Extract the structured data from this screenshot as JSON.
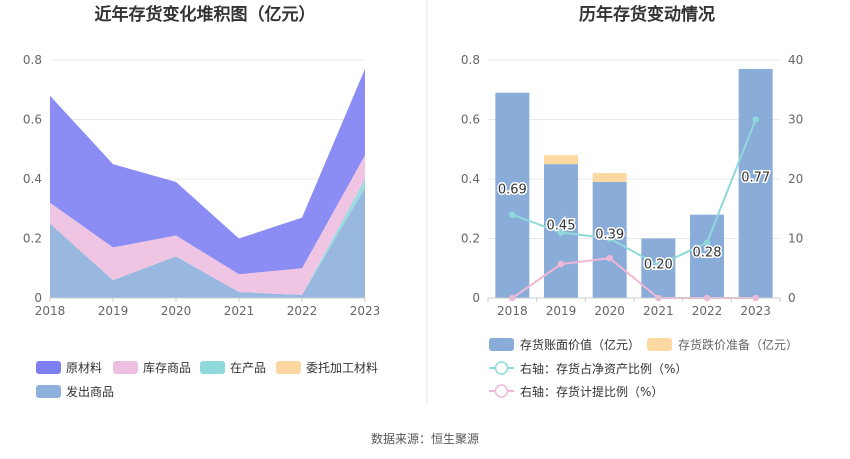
{
  "source": "数据来源：恒生聚源",
  "chart_data": [
    {
      "type": "area",
      "stacked": true,
      "title": "近年存货变化堆积图（亿元）",
      "categories": [
        "2018",
        "2019",
        "2020",
        "2021",
        "2022",
        "2023"
      ],
      "ylim": [
        0,
        0.8
      ],
      "yticks": [
        "0",
        "0.2",
        "0.4",
        "0.6",
        "0.8"
      ],
      "grid": true,
      "legend_position": "bottom",
      "series": [
        {
          "name": "原材料",
          "color": "#7e7ff3",
          "values": [
            0.36,
            0.28,
            0.18,
            0.12,
            0.17,
            0.29
          ]
        },
        {
          "name": "库存商品",
          "color": "#edbfe0",
          "values": [
            0.07,
            0.11,
            0.07,
            0.06,
            0.09,
            0.08
          ]
        },
        {
          "name": "在产品",
          "color": "#8fd8db",
          "values": [
            0.0,
            0.0,
            0.0,
            0.0,
            0.0,
            0.03
          ]
        },
        {
          "name": "委托加工材料",
          "color": "#fcd7a1",
          "values": [
            0.0,
            0.0,
            0.0,
            0.0,
            0.0,
            0.0
          ]
        },
        {
          "name": "发出商品",
          "color": "#8eb0dc",
          "values": [
            0.25,
            0.06,
            0.14,
            0.02,
            0.01,
            0.37
          ]
        }
      ]
    },
    {
      "type": "bar",
      "title": "历年存货变动情况",
      "categories": [
        "2018",
        "2019",
        "2020",
        "2021",
        "2022",
        "2023"
      ],
      "ylim": [
        0,
        0.8
      ],
      "yticks": [
        "0",
        "0.2",
        "0.4",
        "0.6",
        "0.8"
      ],
      "y2lim": [
        0,
        40
      ],
      "y2ticks": [
        "0",
        "10",
        "20",
        "30",
        "40"
      ],
      "grid": true,
      "legend_position": "bottom",
      "series": [
        {
          "name": "存货账面价值（亿元）",
          "kind": "bar",
          "color": "#8aacd9",
          "values": [
            0.69,
            0.45,
            0.39,
            0.2,
            0.28,
            0.77
          ],
          "labels": [
            "0.69",
            "0.45",
            "0.39",
            "0.20",
            "0.28",
            "0.77"
          ]
        },
        {
          "name": "存货跌价准备（亿元）",
          "kind": "bar",
          "color": "#fcd9a0",
          "values": [
            0.0,
            0.03,
            0.03,
            0.0,
            0.0,
            0.0
          ]
        },
        {
          "name": "右轴：存货占净资产比例（%）",
          "kind": "line",
          "axis": "right",
          "color": "#8fd8db",
          "values": [
            14.0,
            11.0,
            10.0,
            5.5,
            9.3,
            30.0
          ]
        },
        {
          "name": "右轴：存货计提比例（%）",
          "kind": "line",
          "axis": "right",
          "color": "#f0b8d8",
          "values": [
            0.0,
            5.7,
            6.7,
            0.0,
            0.0,
            0.0
          ]
        }
      ]
    }
  ]
}
